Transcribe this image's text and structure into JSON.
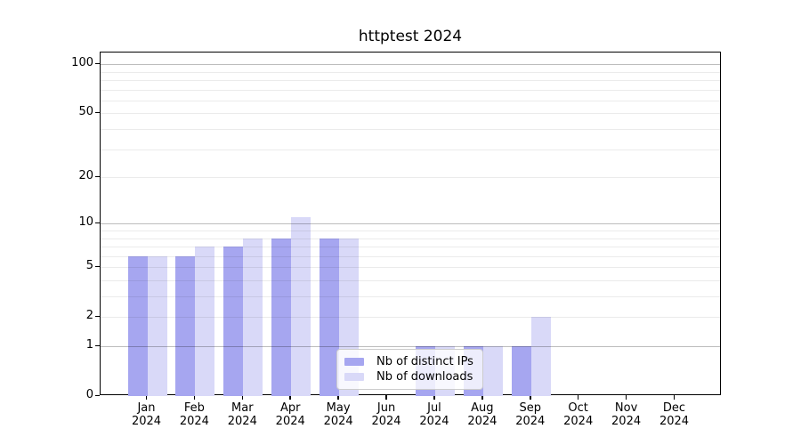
{
  "title": "httptest 2024",
  "legend": {
    "items": [
      {
        "label": "Nb of distinct IPs"
      },
      {
        "label": "Nb of downloads"
      }
    ]
  },
  "chart_data": {
    "type": "bar",
    "title": "httptest 2024",
    "categories": [
      "Jan",
      "Feb",
      "Mar",
      "Apr",
      "May",
      "Jun",
      "Jul",
      "Aug",
      "Sep",
      "Oct",
      "Nov",
      "Dec"
    ],
    "x_year_label": "2024",
    "series": [
      {
        "name": "Nb of distinct IPs",
        "color": "#a6a6f0",
        "values": [
          6,
          6,
          7,
          8,
          8,
          0,
          1,
          1,
          1,
          0,
          0,
          0
        ]
      },
      {
        "name": "Nb of downloads",
        "color": "#d9d9f8",
        "values": [
          6,
          7,
          8,
          11,
          8,
          0,
          1,
          1,
          2,
          0,
          0,
          0
        ]
      }
    ],
    "y_scale": "log10(1+v)",
    "ylim": [
      0,
      118
    ],
    "y_tick_values": [
      100,
      50,
      20,
      10,
      5,
      2,
      1,
      0
    ],
    "y_major_gridlines": [
      1,
      10,
      100
    ],
    "y_minor_gridlines": [
      2,
      3,
      4,
      5,
      6,
      7,
      8,
      9,
      20,
      30,
      40,
      50,
      60,
      70,
      80,
      90
    ],
    "grid_on_top_of_bars": true,
    "legend_position": "lower center",
    "colors": {
      "axis": "#000000",
      "major_grid": "rgba(0,0,0,0.26)",
      "minor_grid": "rgba(0,0,0,0.08)",
      "background": "#ffffff"
    }
  }
}
